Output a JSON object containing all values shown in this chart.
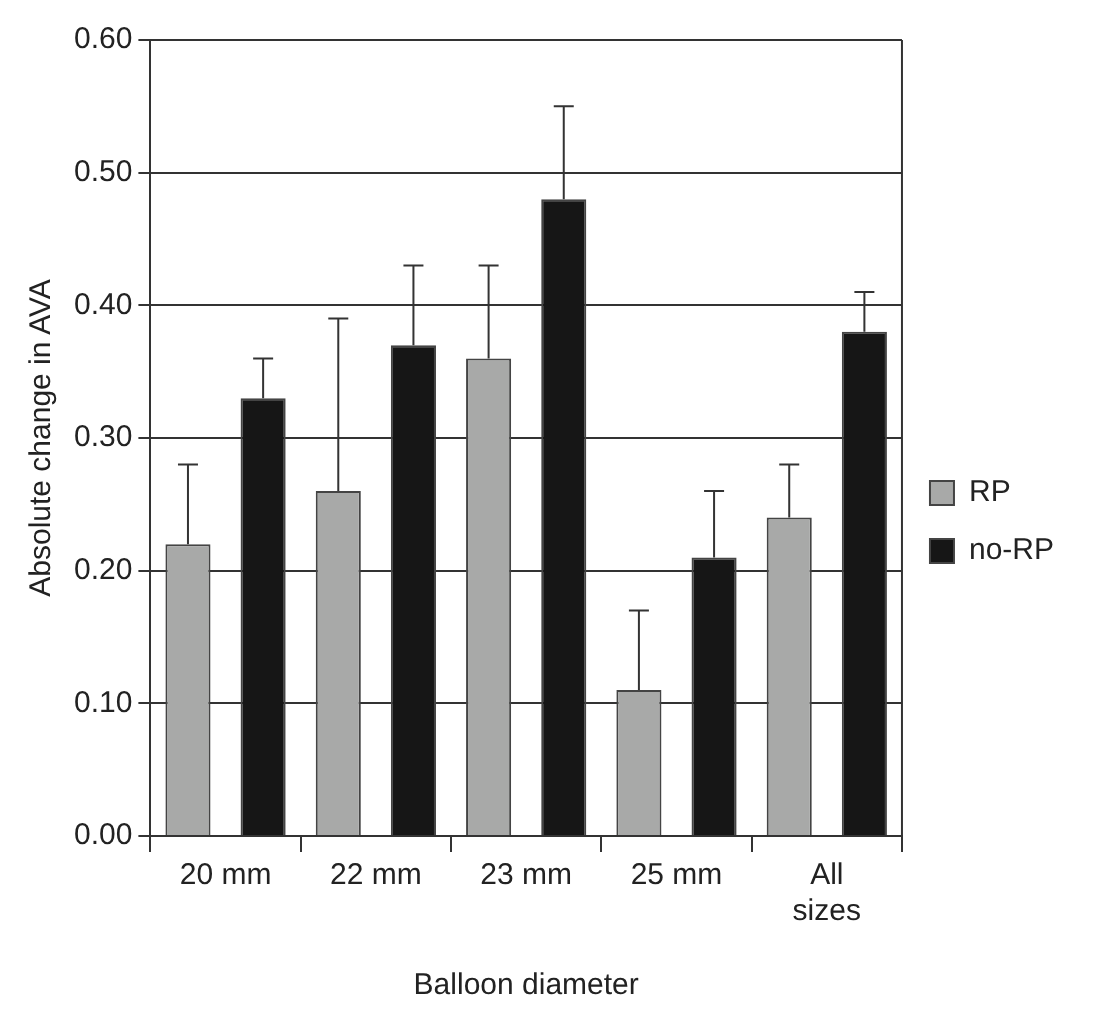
{
  "chart_data": {
    "type": "bar",
    "xlabel": "Balloon diameter",
    "ylabel": "Absolute change in AVA",
    "categories": [
      "20 mm",
      "22 mm",
      "23 mm",
      "25 mm",
      "All sizes"
    ],
    "series": [
      {
        "name": "RP",
        "color": "#a8a9a8",
        "values": [
          0.22,
          0.26,
          0.36,
          0.11,
          0.24
        ],
        "errors": [
          [
            0.22,
            0.28
          ],
          [
            0.26,
            0.39
          ],
          [
            0.36,
            0.43
          ],
          [
            0.11,
            0.17
          ],
          [
            0.24,
            0.28
          ]
        ]
      },
      {
        "name": "no-RP",
        "color": "#161616",
        "values": [
          0.33,
          0.37,
          0.48,
          0.21,
          0.38
        ],
        "errors": [
          [
            0.33,
            0.36
          ],
          [
            0.37,
            0.43
          ],
          [
            0.48,
            0.55
          ],
          [
            0.21,
            0.26
          ],
          [
            0.38,
            0.41
          ]
        ]
      }
    ],
    "ylim": [
      0,
      0.6
    ],
    "yticks": [
      {
        "value": 0,
        "label": "0.00"
      },
      {
        "value": 0.1,
        "label": "0.10"
      },
      {
        "value": 0.2,
        "label": "0.20"
      },
      {
        "value": 0.3,
        "label": "0.30"
      },
      {
        "value": 0.4,
        "label": "0.40"
      },
      {
        "value": 0.5,
        "label": "0.50"
      },
      {
        "value": 0.6,
        "label": "0.60"
      }
    ],
    "grid": "y",
    "legend": "right"
  }
}
